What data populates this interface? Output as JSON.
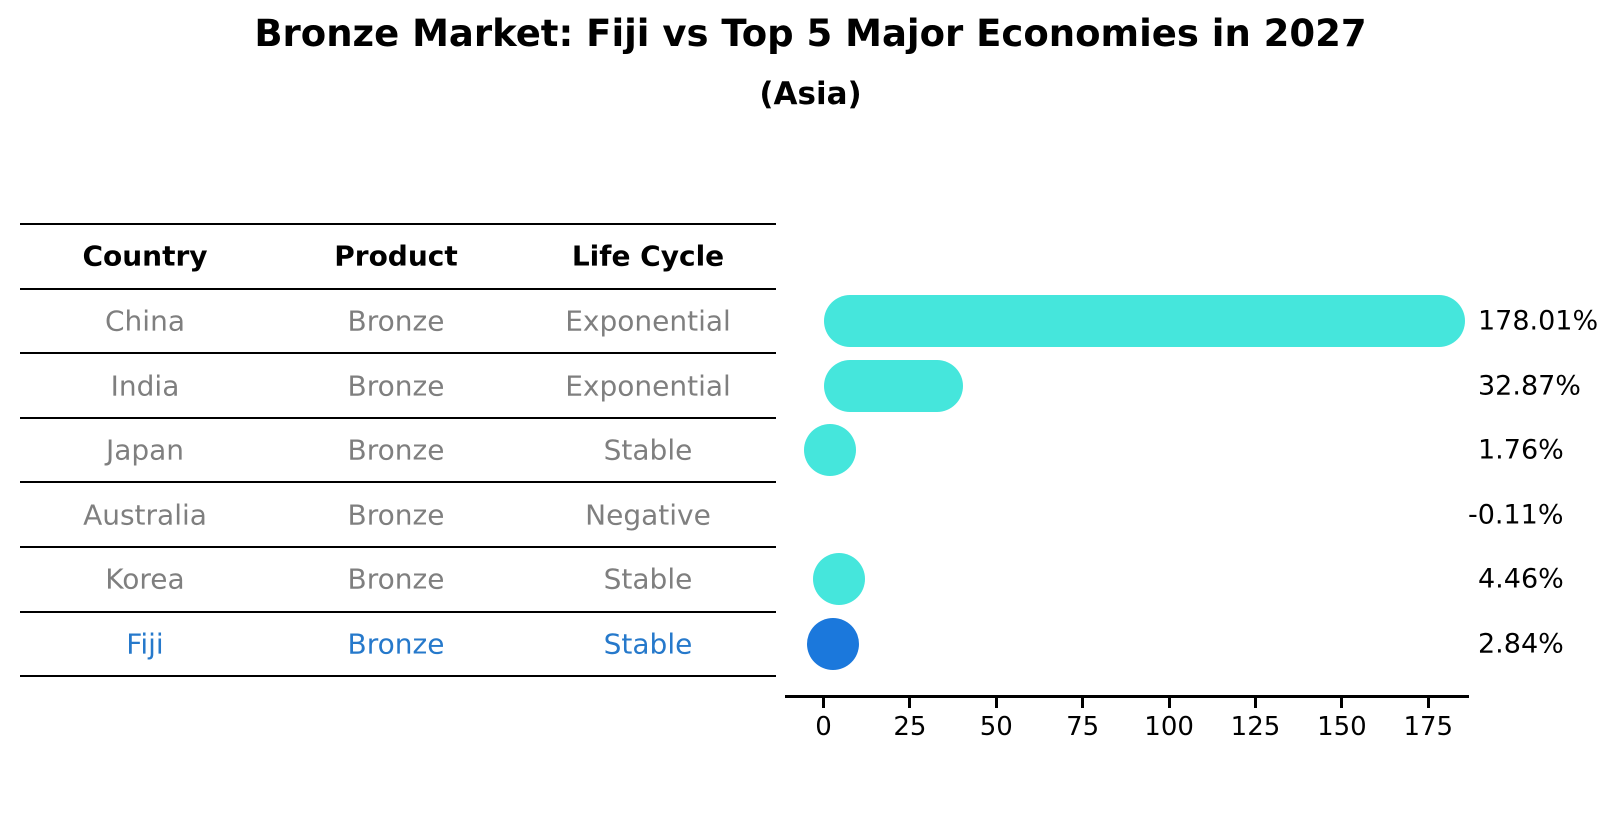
{
  "header": {
    "title": "Bronze Market: Fiji vs Top 5 Major Economies in 2027",
    "subtitle": "(Asia)"
  },
  "table": {
    "columns": [
      "Country",
      "Product",
      "Life Cycle"
    ],
    "rows": [
      {
        "country": "China",
        "product": "Bronze",
        "life_cycle": "Exponential",
        "highlight": false
      },
      {
        "country": "India",
        "product": "Bronze",
        "life_cycle": "Exponential",
        "highlight": false
      },
      {
        "country": "Japan",
        "product": "Bronze",
        "life_cycle": "Stable",
        "highlight": false
      },
      {
        "country": "Australia",
        "product": "Bronze",
        "life_cycle": "Negative",
        "highlight": false
      },
      {
        "country": "Korea",
        "product": "Bronze",
        "life_cycle": "Stable",
        "highlight": false
      },
      {
        "country": "Fiji",
        "product": "Bronze",
        "life_cycle": "Stable",
        "highlight": true
      }
    ]
  },
  "chart_data": {
    "type": "bar",
    "orientation": "horizontal",
    "title": "Bronze Market: Fiji vs Top 5 Major Economies in 2027",
    "subtitle": "(Asia)",
    "categories": [
      "China",
      "India",
      "Japan",
      "Australia",
      "Korea",
      "Fiji"
    ],
    "values": [
      178.01,
      32.87,
      1.76,
      -0.11,
      4.46,
      2.84
    ],
    "value_labels": [
      "178.01%",
      "32.87%",
      "1.76%",
      "-0.11%",
      "4.46%",
      "2.84%"
    ],
    "x_ticks": [
      "0",
      "25",
      "50",
      "75",
      "100",
      "125",
      "150",
      "175"
    ],
    "xlim": [
      -11,
      187
    ],
    "grid": false,
    "legend": false,
    "highlight_index": 5
  },
  "colors": {
    "bar": "#45E6DC",
    "highlight_bar": "#1B78DC",
    "highlight_text": "#2679CB",
    "cell_text": "#7F7F7F",
    "heading_text": "#000000",
    "axis": "#000000"
  }
}
